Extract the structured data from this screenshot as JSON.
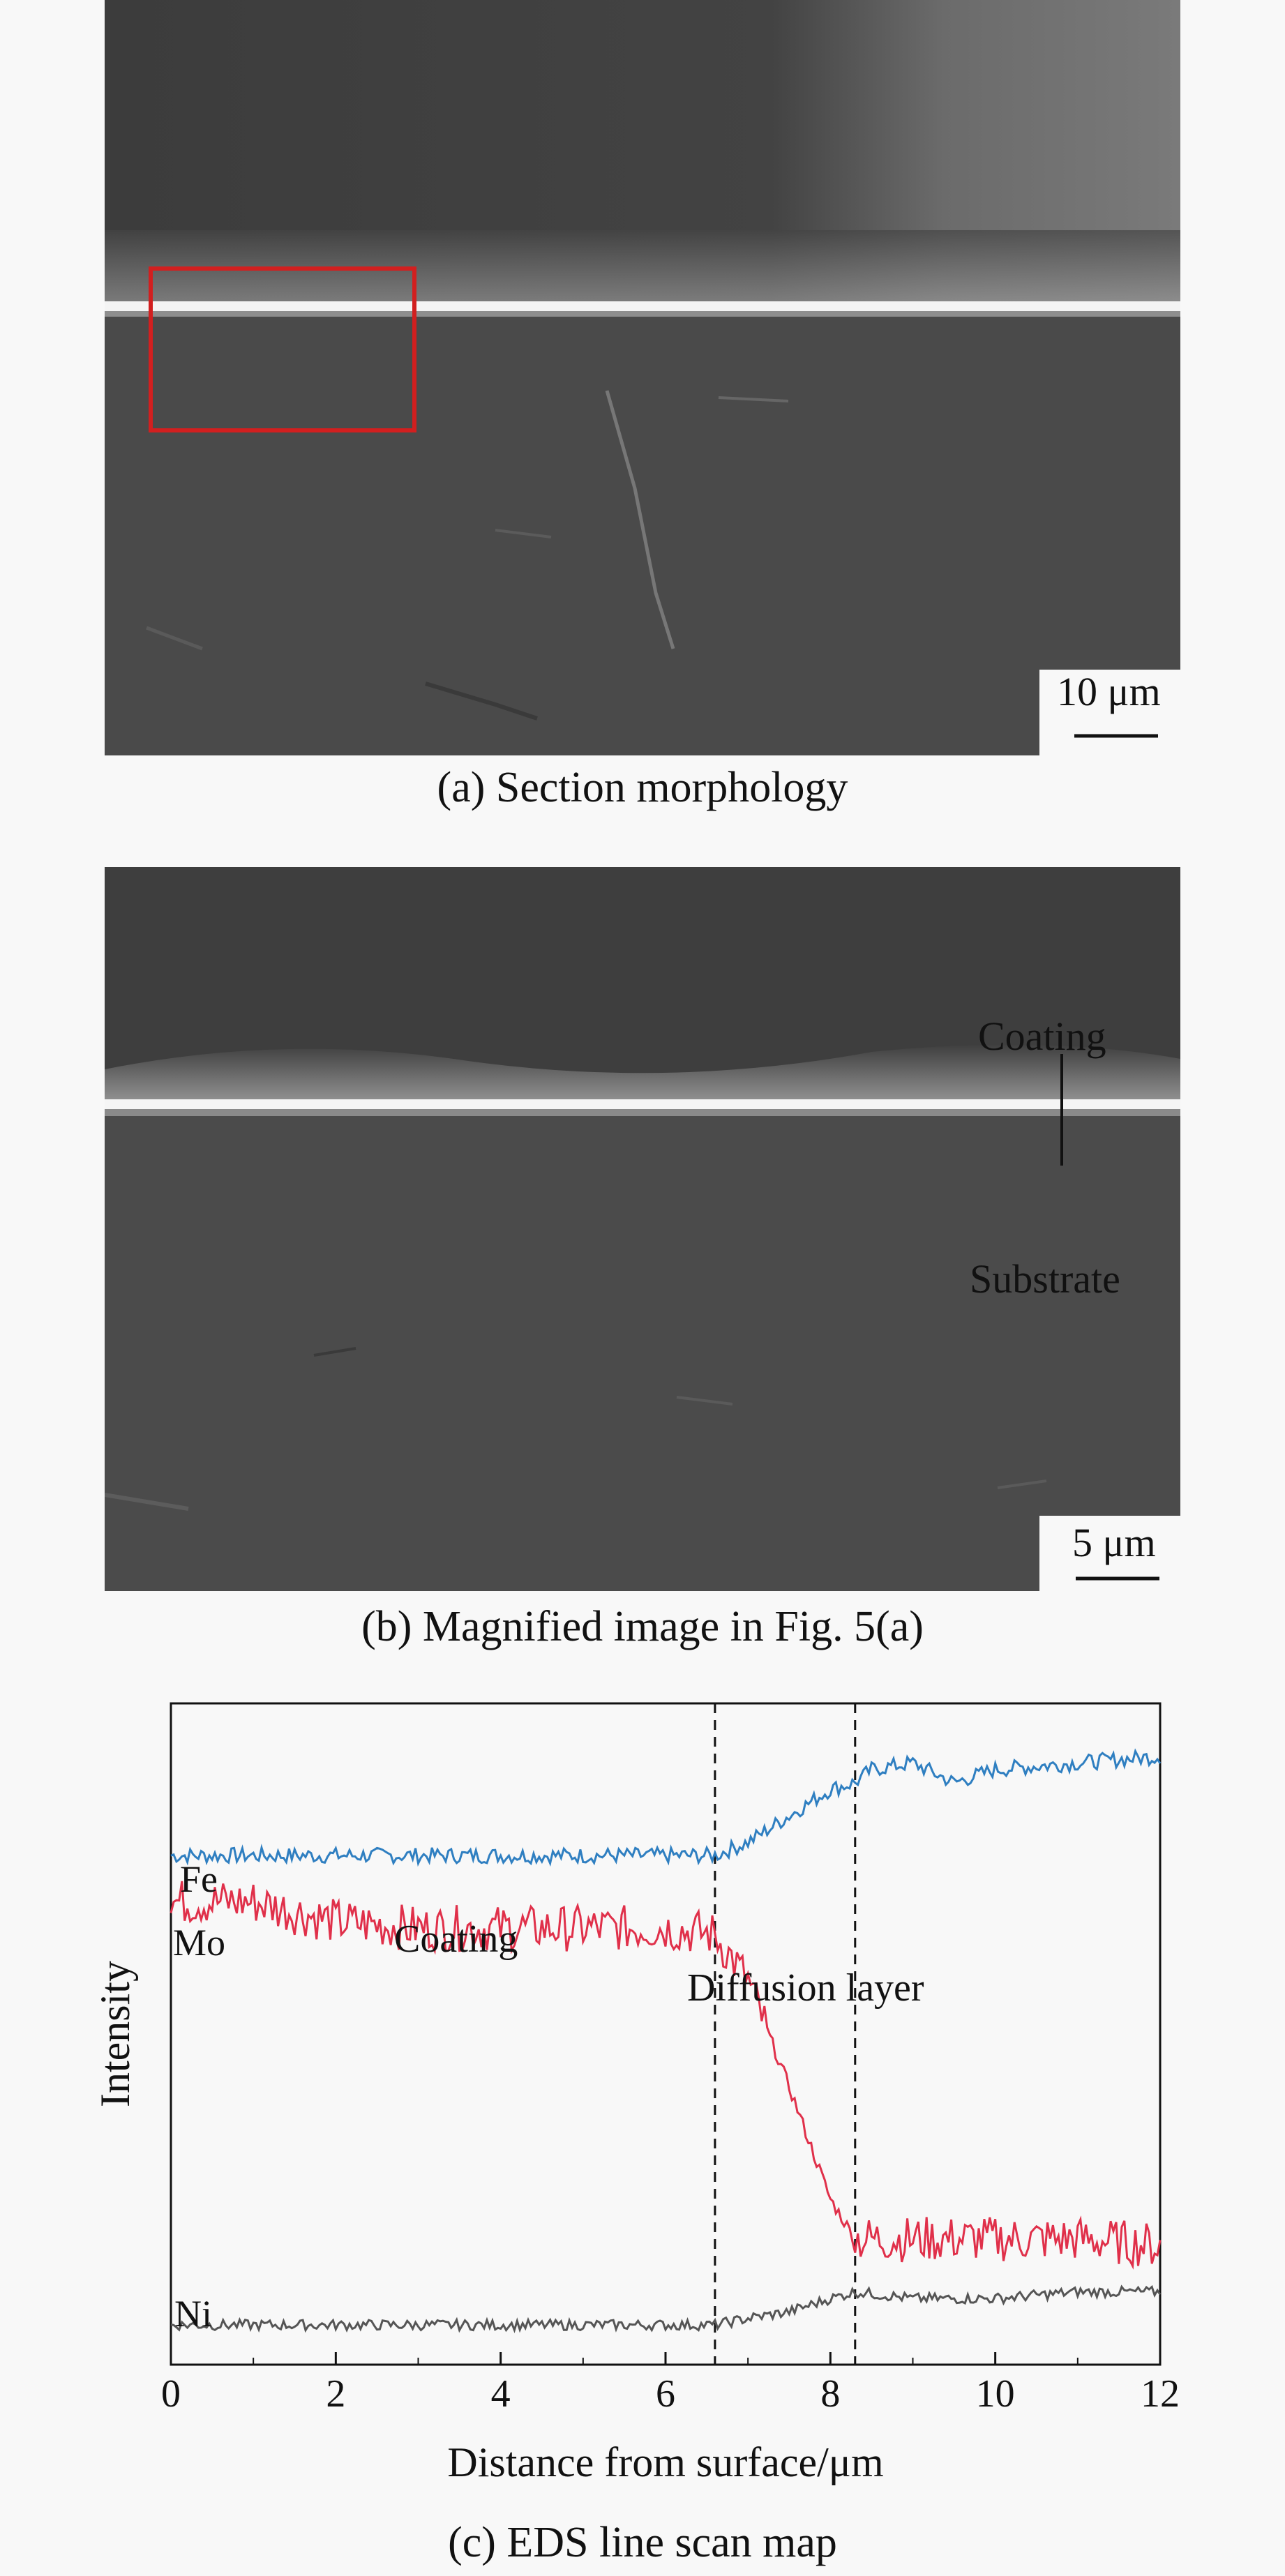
{
  "panel_a": {
    "caption": "(a) Section morphology",
    "scale_bar_label": "10 μm"
  },
  "panel_b": {
    "caption": "(b) Magnified image in Fig. 5(a)",
    "scale_bar_label": "5 μm",
    "labels": {
      "coating": "Coating",
      "substrate": "Substrate"
    }
  },
  "panel_c": {
    "caption": "(c) EDS line scan map",
    "region_labels": {
      "coating": "Coating",
      "diffusion": "Diffusion layer"
    },
    "boundaries": [
      6.6,
      8.3
    ]
  },
  "chart_data": {
    "type": "line",
    "title": "",
    "xlabel": "Distance from surface/μm",
    "ylabel": "Intensity",
    "xlim": [
      0,
      12
    ],
    "xticks": [
      0,
      2,
      4,
      6,
      8,
      10,
      12
    ],
    "grid": false,
    "series": [
      {
        "name": "Fe",
        "color": "#2f7fc1",
        "x": [
          0,
          2,
          4,
          6,
          6.6,
          7.0,
          7.5,
          8.0,
          8.3,
          8.5,
          9.0,
          9.5,
          10.0,
          11.0,
          12.0
        ],
        "y": [
          0.77,
          0.77,
          0.77,
          0.77,
          0.77,
          0.79,
          0.83,
          0.87,
          0.88,
          0.9,
          0.91,
          0.88,
          0.9,
          0.91,
          0.92
        ]
      },
      {
        "name": "Mo",
        "color": "#e0304a",
        "x": [
          0,
          1,
          2,
          3,
          4,
          5,
          6,
          6.6,
          7.0,
          7.5,
          8.0,
          8.3,
          9,
          10,
          11,
          12
        ],
        "y": [
          0.7,
          0.7,
          0.67,
          0.66,
          0.66,
          0.66,
          0.66,
          0.65,
          0.58,
          0.42,
          0.25,
          0.19,
          0.19,
          0.19,
          0.19,
          0.18
        ]
      },
      {
        "name": "Ni",
        "color": "#555555",
        "x": [
          0,
          2,
          4,
          6,
          6.6,
          7.0,
          7.5,
          8.0,
          8.3,
          9,
          10,
          11,
          12
        ],
        "y": [
          0.06,
          0.06,
          0.06,
          0.06,
          0.06,
          0.07,
          0.08,
          0.1,
          0.11,
          0.1,
          0.1,
          0.11,
          0.11
        ]
      }
    ]
  }
}
